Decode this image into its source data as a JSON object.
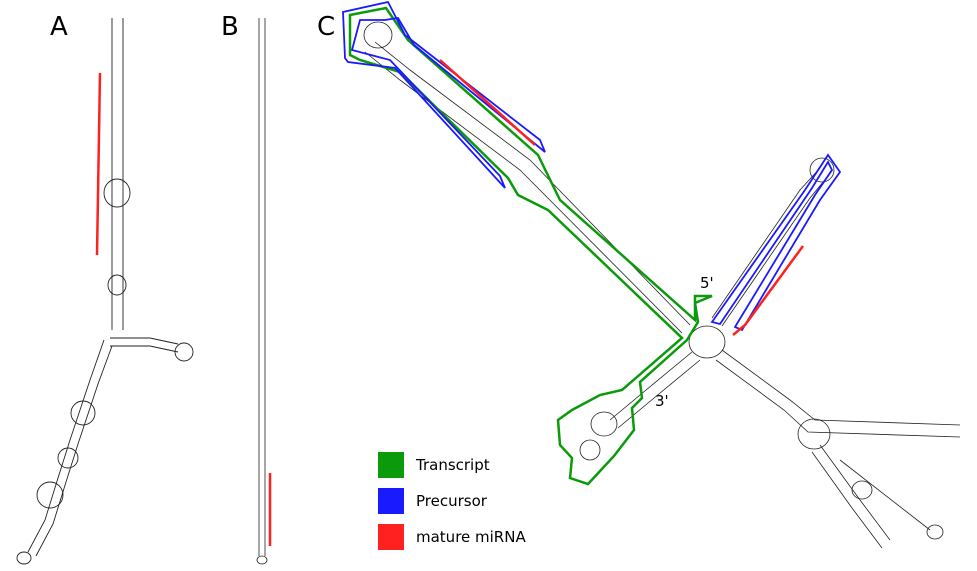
{
  "panels": {
    "a": {
      "label": "A"
    },
    "b": {
      "label": "B"
    },
    "c": {
      "label": "C",
      "five_prime": "5'",
      "three_prime": "3'"
    }
  },
  "legend": {
    "items": [
      {
        "label": "Transcript",
        "color": "#0a9a0a"
      },
      {
        "label": "Precursor",
        "color": "#1a1aff"
      },
      {
        "label": "mature miRNA",
        "color": "#ff2020"
      }
    ]
  },
  "colors": {
    "transcript": "#0a9a0a",
    "precursor": "#1a1aff",
    "mature": "#ff2020",
    "structure": "#222222"
  }
}
